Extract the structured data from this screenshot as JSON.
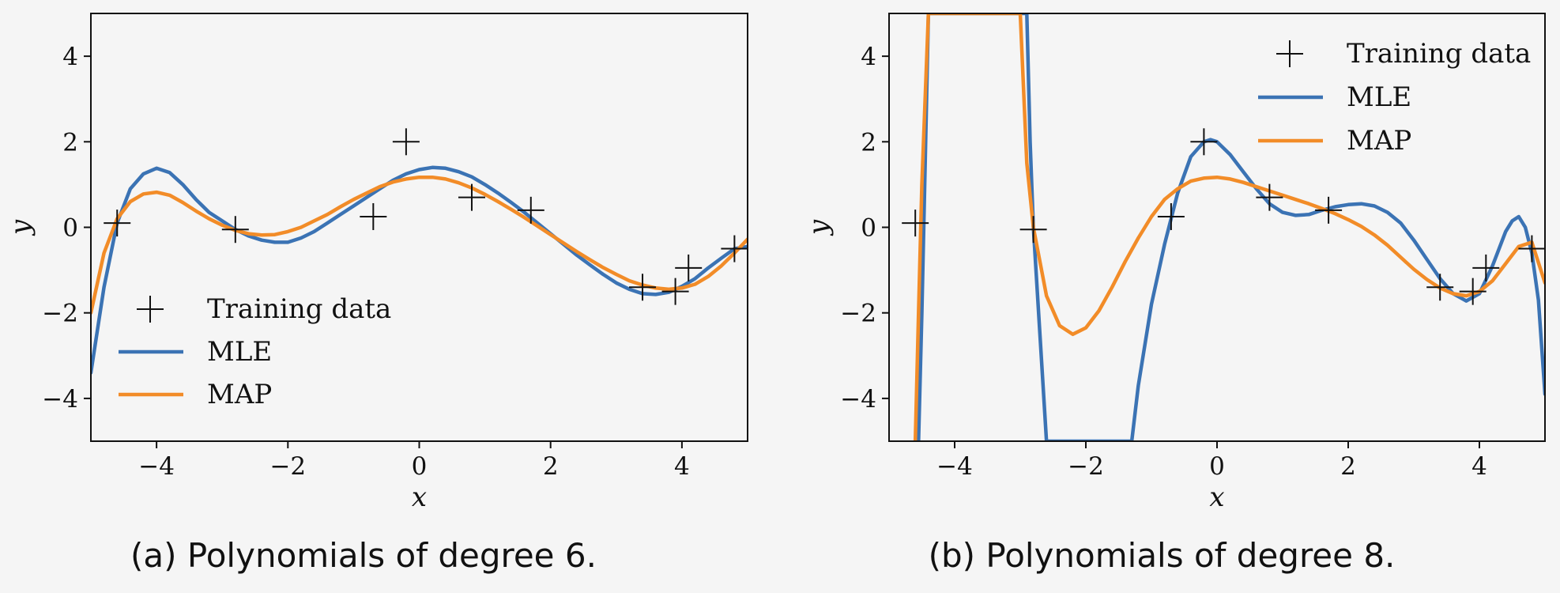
{
  "chart_data": [
    {
      "type": "line",
      "caption": "(a) Polynomials of degree 6.",
      "xlabel": "x",
      "ylabel": "y",
      "xlim": [
        -5,
        5
      ],
      "ylim": [
        -5,
        5
      ],
      "xticks": [
        -4,
        -2,
        0,
        2,
        4
      ],
      "yticks": [
        -4,
        -2,
        0,
        2,
        4
      ],
      "legend_position": "bottom-left",
      "legend": [
        "Training data",
        "MLE",
        "MAP"
      ],
      "training_data": {
        "name": "Training data",
        "x": [
          -4.6,
          -2.8,
          -0.7,
          -0.2,
          0.8,
          1.7,
          3.4,
          3.9,
          4.1,
          4.8
        ],
        "y": [
          0.1,
          -0.05,
          0.25,
          2.0,
          0.7,
          0.4,
          -1.4,
          -1.5,
          -0.95,
          -0.5
        ]
      },
      "series": [
        {
          "name": "MLE",
          "color": "#3b73b4",
          "x": [
            -5.0,
            -4.8,
            -4.6,
            -4.4,
            -4.2,
            -4.0,
            -3.8,
            -3.6,
            -3.4,
            -3.2,
            -3.0,
            -2.8,
            -2.6,
            -2.4,
            -2.2,
            -2.0,
            -1.8,
            -1.6,
            -1.4,
            -1.2,
            -1.0,
            -0.8,
            -0.6,
            -0.4,
            -0.2,
            0.0,
            0.2,
            0.4,
            0.6,
            0.8,
            1.0,
            1.2,
            1.4,
            1.6,
            1.8,
            2.0,
            2.2,
            2.4,
            2.6,
            2.8,
            3.0,
            3.2,
            3.4,
            3.6,
            3.8,
            4.0,
            4.2,
            4.4,
            4.6,
            4.8,
            5.0
          ],
          "y": [
            -3.4,
            -1.4,
            0.1,
            0.9,
            1.25,
            1.38,
            1.28,
            1.0,
            0.65,
            0.35,
            0.15,
            -0.05,
            -0.2,
            -0.3,
            -0.35,
            -0.35,
            -0.25,
            -0.1,
            0.1,
            0.3,
            0.5,
            0.7,
            0.9,
            1.1,
            1.25,
            1.35,
            1.4,
            1.38,
            1.3,
            1.18,
            1.0,
            0.8,
            0.58,
            0.35,
            0.1,
            -0.15,
            -0.4,
            -0.65,
            -0.88,
            -1.1,
            -1.3,
            -1.45,
            -1.55,
            -1.57,
            -1.52,
            -1.38,
            -1.2,
            -0.95,
            -0.72,
            -0.5,
            -0.45
          ]
        },
        {
          "name": "MAP",
          "color": "#f28c28",
          "x": [
            -5.0,
            -4.8,
            -4.6,
            -4.4,
            -4.2,
            -4.0,
            -3.8,
            -3.6,
            -3.4,
            -3.2,
            -3.0,
            -2.8,
            -2.6,
            -2.4,
            -2.2,
            -2.0,
            -1.8,
            -1.6,
            -1.4,
            -1.2,
            -1.0,
            -0.8,
            -0.6,
            -0.4,
            -0.2,
            0.0,
            0.2,
            0.4,
            0.6,
            0.8,
            1.0,
            1.2,
            1.4,
            1.6,
            1.8,
            2.0,
            2.2,
            2.4,
            2.6,
            2.8,
            3.0,
            3.2,
            3.4,
            3.6,
            3.8,
            4.0,
            4.2,
            4.4,
            4.6,
            4.8,
            5.0
          ],
          "y": [
            -2.0,
            -0.6,
            0.2,
            0.6,
            0.78,
            0.82,
            0.75,
            0.58,
            0.38,
            0.2,
            0.05,
            -0.07,
            -0.15,
            -0.18,
            -0.17,
            -0.1,
            0.0,
            0.15,
            0.3,
            0.48,
            0.65,
            0.8,
            0.95,
            1.06,
            1.13,
            1.17,
            1.17,
            1.13,
            1.04,
            0.92,
            0.77,
            0.6,
            0.42,
            0.23,
            0.03,
            -0.17,
            -0.37,
            -0.57,
            -0.76,
            -0.94,
            -1.1,
            -1.25,
            -1.35,
            -1.42,
            -1.45,
            -1.42,
            -1.33,
            -1.15,
            -0.9,
            -0.6,
            -0.28
          ]
        }
      ]
    },
    {
      "type": "line",
      "caption": "(b) Polynomials of degree 8.",
      "xlabel": "x",
      "ylabel": "y",
      "xlim": [
        -5,
        5
      ],
      "ylim": [
        -5,
        5
      ],
      "xticks": [
        -4,
        -2,
        0,
        2,
        4
      ],
      "yticks": [
        -4,
        -2,
        0,
        2,
        4
      ],
      "legend_position": "top-right",
      "legend": [
        "Training data",
        "MLE",
        "MAP"
      ],
      "training_data": {
        "name": "Training data",
        "x": [
          -4.6,
          -2.8,
          -0.7,
          -0.2,
          0.8,
          1.7,
          3.4,
          3.9,
          4.1,
          4.8
        ],
        "y": [
          0.1,
          -0.05,
          0.25,
          2.0,
          0.7,
          0.4,
          -1.4,
          -1.5,
          -0.95,
          -0.5
        ]
      },
      "series": [
        {
          "name": "MLE",
          "color": "#3b73b4",
          "x": [
            -4.55,
            -4.5,
            -4.45,
            -4.4,
            -2.9,
            -2.85,
            -2.8,
            -2.7,
            -2.6,
            -1.3,
            -1.2,
            -1.0,
            -0.8,
            -0.6,
            -0.4,
            -0.2,
            -0.1,
            0.0,
            0.2,
            0.4,
            0.6,
            0.8,
            1.0,
            1.2,
            1.4,
            1.6,
            1.8,
            2.0,
            2.2,
            2.4,
            2.6,
            2.8,
            3.0,
            3.2,
            3.4,
            3.6,
            3.8,
            4.0,
            4.2,
            4.4,
            4.5,
            4.6,
            4.7,
            4.8,
            4.9,
            5.0
          ],
          "y": [
            -5.0,
            -2.0,
            1.5,
            5.0,
            5.0,
            2.0,
            0.0,
            -2.5,
            -5.0,
            -5.0,
            -3.7,
            -1.8,
            -0.4,
            0.8,
            1.65,
            2.0,
            2.05,
            2.0,
            1.7,
            1.3,
            0.9,
            0.55,
            0.35,
            0.28,
            0.3,
            0.4,
            0.48,
            0.53,
            0.55,
            0.5,
            0.35,
            0.1,
            -0.3,
            -0.75,
            -1.2,
            -1.55,
            -1.72,
            -1.55,
            -0.9,
            -0.1,
            0.15,
            0.25,
            0.0,
            -0.6,
            -1.7,
            -3.9
          ]
        },
        {
          "name": "MAP",
          "color": "#f28c28",
          "x": [
            -4.6,
            -4.55,
            -4.5,
            -4.4,
            -3.0,
            -2.9,
            -2.8,
            -2.6,
            -2.4,
            -2.2,
            -2.0,
            -1.8,
            -1.6,
            -1.4,
            -1.2,
            -1.0,
            -0.8,
            -0.6,
            -0.4,
            -0.2,
            0.0,
            0.2,
            0.4,
            0.6,
            0.8,
            1.0,
            1.2,
            1.4,
            1.6,
            1.8,
            2.0,
            2.2,
            2.4,
            2.6,
            2.8,
            3.0,
            3.2,
            3.4,
            3.6,
            3.8,
            4.0,
            4.2,
            4.4,
            4.6,
            4.8,
            5.0
          ],
          "y": [
            -5.0,
            -2.0,
            1.0,
            5.0,
            5.0,
            1.5,
            0.0,
            -1.6,
            -2.3,
            -2.5,
            -2.35,
            -1.95,
            -1.4,
            -0.8,
            -0.25,
            0.25,
            0.65,
            0.9,
            1.08,
            1.15,
            1.17,
            1.13,
            1.05,
            0.95,
            0.85,
            0.75,
            0.65,
            0.55,
            0.44,
            0.32,
            0.18,
            0.02,
            -0.18,
            -0.42,
            -0.7,
            -0.98,
            -1.22,
            -1.42,
            -1.55,
            -1.6,
            -1.5,
            -1.25,
            -0.85,
            -0.45,
            -0.35,
            -1.3
          ]
        }
      ]
    }
  ]
}
